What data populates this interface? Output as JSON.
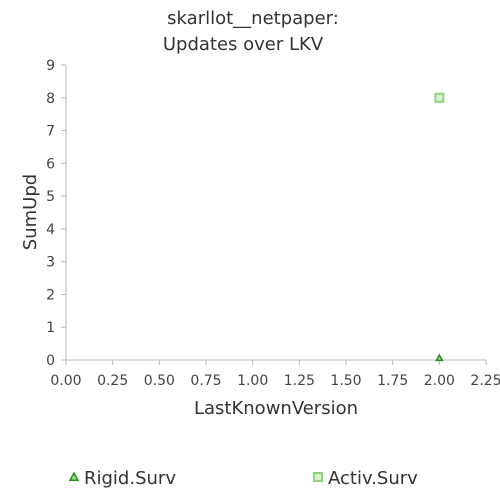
{
  "chart_data": {
    "type": "scatter",
    "title_lines": [
      "skarllot__netpaper:",
      "Updates over LKV"
    ],
    "xlabel": "LastKnownVersion",
    "ylabel": "SumUpd",
    "xlim": [
      0,
      2.25
    ],
    "ylim": [
      0,
      9
    ],
    "x_ticks": [
      "0.00",
      "0.25",
      "0.50",
      "0.75",
      "1.00",
      "1.25",
      "1.50",
      "1.75",
      "2.00",
      "2.25"
    ],
    "x_tick_values": [
      0,
      0.25,
      0.5,
      0.75,
      1.0,
      1.25,
      1.5,
      1.75,
      2.0,
      2.25
    ],
    "y_ticks": [
      "0",
      "1",
      "2",
      "3",
      "4",
      "5",
      "6",
      "7",
      "8",
      "9"
    ],
    "y_tick_values": [
      0,
      1,
      2,
      3,
      4,
      5,
      6,
      7,
      8,
      9
    ],
    "grid": false,
    "legend_position": "bottom",
    "series": [
      {
        "name": "Rigid.Surv",
        "marker": "triangle",
        "color": "#2e8b22",
        "fill": "#9ed88f",
        "points": [
          {
            "x": 2.0,
            "y": 0
          }
        ]
      },
      {
        "name": "Activ.Surv",
        "marker": "square",
        "color": "#8fd37f",
        "fill": "#d9f2d2",
        "points": [
          {
            "x": 2.0,
            "y": 8
          }
        ]
      }
    ]
  }
}
